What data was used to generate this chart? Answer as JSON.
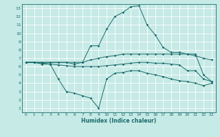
{
  "xlabel": "Humidex (Indice chaleur)",
  "xlim": [
    -0.5,
    23.5
  ],
  "ylim": [
    0.5,
    13.5
  ],
  "yticks": [
    1,
    2,
    3,
    4,
    5,
    6,
    7,
    8,
    9,
    10,
    11,
    12,
    13
  ],
  "xticks": [
    0,
    1,
    2,
    3,
    4,
    5,
    6,
    7,
    8,
    9,
    10,
    11,
    12,
    13,
    14,
    15,
    16,
    17,
    18,
    19,
    20,
    21,
    22,
    23
  ],
  "bg_color": "#c6eae6",
  "grid_color": "#ffffff",
  "line_color": "#1a6b6b",
  "series": [
    [
      6.5,
      6.5,
      6.3,
      6.3,
      4.5,
      3.0,
      2.8,
      2.5,
      2.2,
      1.0,
      4.5,
      5.2,
      5.3,
      5.5,
      5.5,
      5.2,
      5.0,
      4.8,
      4.5,
      4.3,
      4.2,
      4.0,
      3.7,
      4.0
    ],
    [
      6.5,
      6.5,
      6.5,
      6.5,
      6.5,
      6.5,
      6.5,
      6.5,
      8.5,
      8.5,
      10.5,
      12.0,
      12.5,
      13.2,
      13.3,
      11.0,
      9.8,
      8.3,
      7.7,
      7.7,
      7.5,
      7.5,
      5.0,
      4.2
    ],
    [
      6.5,
      6.5,
      6.5,
      6.5,
      6.5,
      6.5,
      6.3,
      6.5,
      6.8,
      7.0,
      7.2,
      7.3,
      7.5,
      7.5,
      7.5,
      7.5,
      7.5,
      7.5,
      7.5,
      7.5,
      7.5,
      7.3,
      7.0,
      6.8
    ],
    [
      6.5,
      6.5,
      6.4,
      6.3,
      6.2,
      6.1,
      6.0,
      6.0,
      6.0,
      6.0,
      6.1,
      6.2,
      6.3,
      6.4,
      6.5,
      6.5,
      6.4,
      6.4,
      6.3,
      6.2,
      5.5,
      5.5,
      4.5,
      4.2
    ]
  ]
}
